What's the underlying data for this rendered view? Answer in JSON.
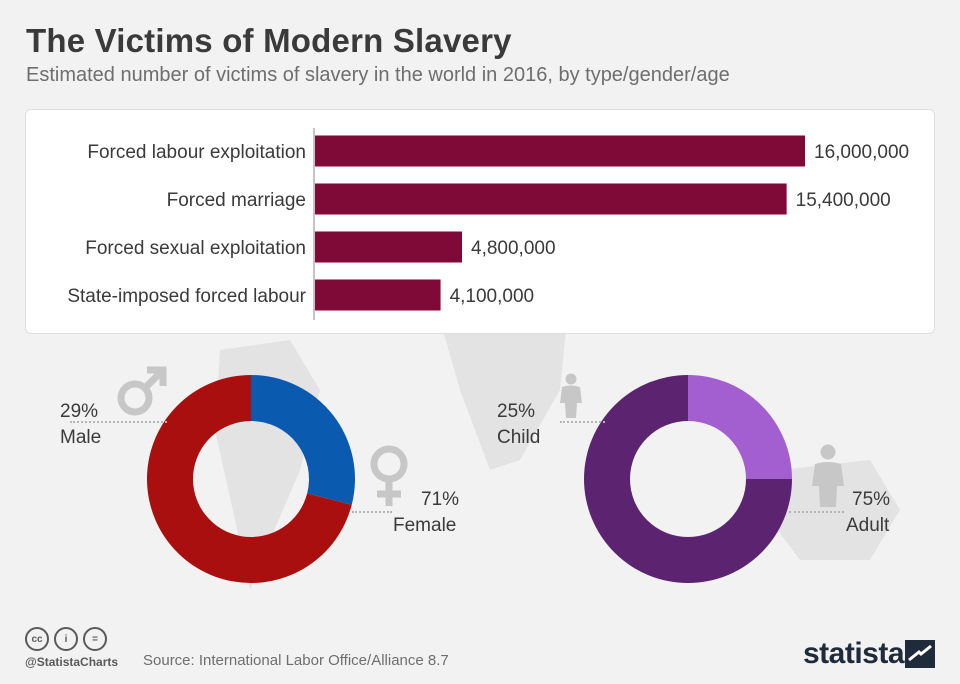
{
  "title": "The Victims of Modern Slavery",
  "subtitle": "Estimated number of victims of slavery in the world in 2016, by type/gender/age",
  "chart_data": [
    {
      "type": "bar",
      "orientation": "horizontal",
      "categories": [
        "Forced labour exploitation",
        "Forced marriage",
        "Forced sexual exploitation",
        "State-imposed forced labour"
      ],
      "values": [
        16000000,
        15400000,
        4800000,
        4100000
      ],
      "value_labels": [
        "16,000,000",
        "15,400,000",
        "4,800,000",
        "4,100,000"
      ],
      "xlim": [
        0,
        16000000
      ],
      "color": "#7f0a38"
    },
    {
      "type": "pie",
      "variant": "donut",
      "slices": [
        {
          "name": "Male",
          "value": 29,
          "label": "29%",
          "color": "#0a5bb0"
        },
        {
          "name": "Female",
          "value": 71,
          "label": "71%",
          "color": "#aa0f0f"
        }
      ]
    },
    {
      "type": "pie",
      "variant": "donut",
      "slices": [
        {
          "name": "Child",
          "value": 25,
          "label": "25%",
          "color": "#a35fd0"
        },
        {
          "name": "Adult",
          "value": 75,
          "label": "75%",
          "color": "#5b2370"
        }
      ]
    }
  ],
  "labels": {
    "male_pct": "29%",
    "male": "Male",
    "female_pct": "71%",
    "female": "Female",
    "child_pct": "25%",
    "child": "Child",
    "adult_pct": "75%",
    "adult": "Adult"
  },
  "icons": [
    "male-symbol-icon",
    "female-symbol-icon",
    "child-figure-icon",
    "adult-figure-icon",
    "cc-icon",
    "by-icon",
    "nd-icon",
    "statista-logo-icon"
  ],
  "footer": {
    "cc": "cc",
    "by": "i",
    "nd": "=",
    "handle": "@StatistaCharts",
    "source": "Source: International Labor Office/Alliance 8.7",
    "brand": "statista"
  },
  "colors": {
    "background": "#f2f2f2",
    "bar": "#7f0a38",
    "male": "#0a5bb0",
    "female": "#aa0f0f",
    "child": "#a35fd0",
    "adult": "#5b2370",
    "icon_grey": "#c7c7c7"
  }
}
